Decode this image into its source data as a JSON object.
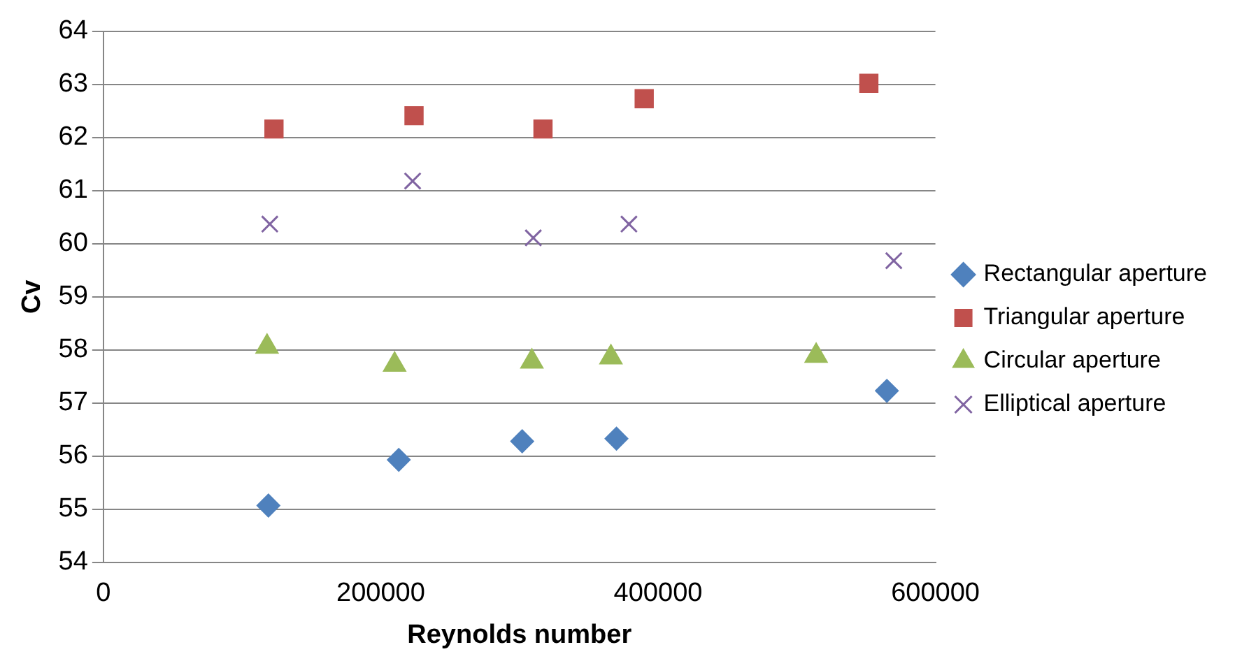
{
  "chart_data": {
    "type": "scatter",
    "xlabel": "Reynolds number",
    "ylabel": "Cv",
    "xlim": [
      0,
      600000
    ],
    "xticks": [
      0,
      200000,
      400000,
      600000
    ],
    "ylim": [
      54,
      64
    ],
    "yticks": [
      54,
      55,
      56,
      57,
      58,
      59,
      60,
      61,
      62,
      63,
      64
    ],
    "grid": "y",
    "legend": "right",
    "series": [
      {
        "name": "Rectangular aperture",
        "color": "#4f81bd",
        "marker": "diamond",
        "x": [
          119000,
          213000,
          302000,
          370000,
          565000
        ],
        "values": [
          55.07,
          55.93,
          56.28,
          56.33,
          57.23
        ]
      },
      {
        "name": "Triangular aperture",
        "color": "#c0504d",
        "marker": "square",
        "x": [
          123000,
          224000,
          317000,
          390000,
          552000
        ],
        "values": [
          62.16,
          62.41,
          62.16,
          62.73,
          63.02
        ]
      },
      {
        "name": "Circular aperture",
        "color": "#9bbb59",
        "marker": "triangle",
        "x": [
          118000,
          210000,
          309000,
          366000,
          514000
        ],
        "values": [
          58.06,
          57.72,
          57.78,
          57.86,
          57.89
        ]
      },
      {
        "name": "Elliptical aperture",
        "color": "#8064a2",
        "marker": "cross",
        "x": [
          120000,
          223000,
          310000,
          379000,
          570000
        ],
        "values": [
          60.37,
          61.18,
          60.11,
          60.37,
          59.68
        ]
      }
    ]
  }
}
